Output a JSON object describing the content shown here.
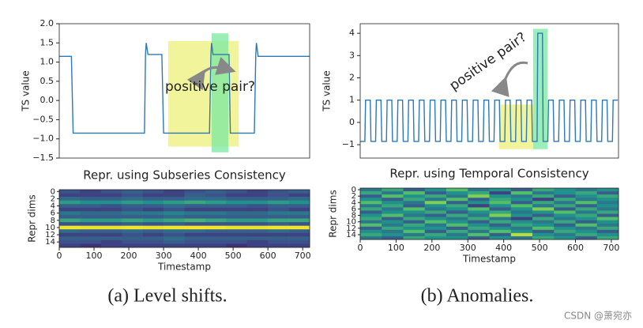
{
  "chart_data": [
    {
      "type": "line",
      "ylabel": "TS value",
      "color": "#2e78b3",
      "xlim": [
        0,
        720
      ],
      "ylim": [
        -1.5,
        2.0
      ],
      "yticks": [
        {
          "value": -1.5,
          "label": "−1.5"
        },
        {
          "value": -1.0,
          "label": "−1.0"
        },
        {
          "value": -0.5,
          "label": "−0.5"
        },
        {
          "value": 0,
          "label": "0.0"
        },
        {
          "value": 0.5,
          "label": "0.5"
        },
        {
          "value": 1.0,
          "label": "1.0"
        },
        {
          "value": 1.5,
          "label": "1.5"
        },
        {
          "value": 2.0,
          "label": "2.0"
        }
      ],
      "x": [
        0,
        35,
        40,
        245,
        248,
        250,
        255,
        295,
        300,
        432,
        436,
        438,
        442,
        488,
        492,
        561,
        565,
        567,
        572,
        720
      ],
      "values": [
        1.15,
        1.15,
        -0.85,
        -0.85,
        1.2,
        1.5,
        1.2,
        1.2,
        -0.85,
        -0.85,
        1.2,
        1.5,
        1.2,
        1.2,
        -0.85,
        -0.85,
        1.2,
        1.5,
        1.15,
        1.15
      ],
      "highlights": [
        {
          "x": [
            313,
            516
          ],
          "y": [
            -1.2,
            1.55
          ],
          "color": "#eef07a"
        },
        {
          "x": [
            438,
            486
          ],
          "y": [
            -1.35,
            1.75
          ],
          "color": "#7ae8a0"
        }
      ],
      "annotation": "positive pair?"
    },
    {
      "type": "heatmap",
      "title": "Repr. using Subseries Consistency",
      "xlabel": "Timestamp",
      "ylabel": "Repr dims",
      "colormap": "viridis",
      "xlim": [
        0,
        720
      ],
      "ylim": [
        15.5,
        -0.5
      ],
      "xticks": [
        0,
        100,
        200,
        300,
        400,
        500,
        600,
        700
      ],
      "yticks": [
        0,
        2,
        4,
        6,
        8,
        10,
        12,
        14
      ],
      "z": [
        [
          0.25,
          0.2,
          0.25,
          0.3,
          0.25,
          0.2,
          0.25,
          0.3,
          0.25,
          0.2,
          0.25,
          0.3
        ],
        [
          0.2,
          0.2,
          0.2,
          0.25,
          0.2,
          0.2,
          0.3,
          0.25,
          0.2,
          0.2,
          0.25,
          0.2
        ],
        [
          0.35,
          0.3,
          0.3,
          0.35,
          0.3,
          0.3,
          0.35,
          0.35,
          0.3,
          0.3,
          0.3,
          0.35
        ],
        [
          0.55,
          0.5,
          0.5,
          0.55,
          0.5,
          0.55,
          0.6,
          0.55,
          0.5,
          0.5,
          0.55,
          0.5
        ],
        [
          0.3,
          0.3,
          0.25,
          0.3,
          0.3,
          0.35,
          0.3,
          0.3,
          0.3,
          0.25,
          0.3,
          0.3
        ],
        [
          0.2,
          0.2,
          0.2,
          0.25,
          0.2,
          0.25,
          0.2,
          0.2,
          0.2,
          0.2,
          0.25,
          0.2
        ],
        [
          0.4,
          0.35,
          0.35,
          0.4,
          0.4,
          0.45,
          0.4,
          0.4,
          0.35,
          0.35,
          0.4,
          0.4
        ],
        [
          0.3,
          0.3,
          0.3,
          0.3,
          0.3,
          0.35,
          0.3,
          0.3,
          0.3,
          0.3,
          0.3,
          0.3
        ],
        [
          0.6,
          0.55,
          0.55,
          0.6,
          0.55,
          0.6,
          0.65,
          0.6,
          0.55,
          0.55,
          0.6,
          0.6
        ],
        [
          0.25,
          0.25,
          0.25,
          0.3,
          0.25,
          0.3,
          0.25,
          0.25,
          0.25,
          0.25,
          0.3,
          0.25
        ],
        [
          0.98,
          0.97,
          0.97,
          0.98,
          0.97,
          0.98,
          0.99,
          0.98,
          0.97,
          0.97,
          0.98,
          0.98
        ],
        [
          0.35,
          0.3,
          0.3,
          0.35,
          0.3,
          0.35,
          0.35,
          0.3,
          0.3,
          0.3,
          0.35,
          0.3
        ],
        [
          0.2,
          0.2,
          0.2,
          0.25,
          0.2,
          0.25,
          0.2,
          0.2,
          0.2,
          0.2,
          0.2,
          0.2
        ],
        [
          0.3,
          0.3,
          0.3,
          0.3,
          0.3,
          0.35,
          0.3,
          0.3,
          0.3,
          0.3,
          0.3,
          0.3
        ],
        [
          0.25,
          0.25,
          0.2,
          0.25,
          0.25,
          0.3,
          0.25,
          0.25,
          0.25,
          0.2,
          0.25,
          0.25
        ],
        [
          0.2,
          0.15,
          0.2,
          0.2,
          0.2,
          0.2,
          0.2,
          0.2,
          0.15,
          0.2,
          0.2,
          0.2
        ]
      ]
    },
    {
      "type": "line",
      "ylabel": "TS value",
      "color": "#2e78b3",
      "xlim": [
        0,
        720
      ],
      "ylim": [
        -1.6,
        4.43
      ],
      "yticks": [
        {
          "value": -1,
          "label": "−1"
        },
        0,
        1,
        2,
        3,
        4
      ],
      "x": [
        0,
        13,
        15,
        28,
        30,
        43,
        45,
        58,
        60,
        73,
        75,
        88,
        90,
        103,
        105,
        118,
        120,
        133,
        135,
        148,
        150,
        163,
        165,
        178,
        180,
        193,
        195,
        208,
        210,
        223,
        225,
        238,
        240,
        253,
        255,
        268,
        270,
        283,
        285,
        298,
        300,
        313,
        315,
        328,
        330,
        343,
        345,
        358,
        360,
        373,
        375,
        388,
        390,
        403,
        405,
        418,
        420,
        433,
        435,
        448,
        450,
        463,
        465,
        478,
        480,
        493,
        495,
        508,
        510,
        523,
        525,
        538,
        540,
        553,
        555,
        568,
        570,
        583,
        585,
        598,
        600,
        613,
        615,
        628,
        630,
        643,
        645,
        658,
        660,
        673,
        675,
        688,
        690,
        703,
        705,
        718
      ],
      "values": [
        -0.85,
        -0.85,
        1.0,
        1.0,
        -0.85,
        -0.85,
        1.0,
        1.0,
        -0.85,
        -0.85,
        1.0,
        1.0,
        -0.85,
        -0.85,
        1.0,
        1.0,
        -0.85,
        -0.85,
        1.0,
        1.0,
        -0.85,
        -0.85,
        1.0,
        1.0,
        -0.85,
        -0.85,
        1.0,
        1.0,
        -0.85,
        -0.85,
        1.0,
        1.0,
        -0.85,
        -0.85,
        1.0,
        1.0,
        -0.85,
        -0.85,
        1.0,
        1.0,
        -0.85,
        -0.85,
        1.0,
        1.0,
        -0.85,
        -0.85,
        1.0,
        1.0,
        -0.85,
        -0.85,
        1.0,
        1.0,
        -0.85,
        -0.85,
        1.0,
        1.0,
        -0.85,
        -0.85,
        1.0,
        1.0,
        -0.85,
        -0.85,
        1.0,
        1.0,
        -0.85,
        -0.85,
        4.0,
        4.0,
        -0.85,
        -0.85,
        1.0,
        1.0,
        -0.85,
        -0.85,
        1.0,
        1.0,
        -0.85,
        -0.85,
        1.0,
        1.0,
        -0.85,
        -0.85,
        1.0,
        1.0,
        -0.85,
        -0.85,
        1.0,
        1.0,
        -0.85,
        -0.85,
        1.0,
        1.0,
        -0.85,
        -0.85,
        1.0,
        1.0
      ],
      "highlights": [
        {
          "x": [
            387,
            482
          ],
          "y": [
            -1.2,
            0.8
          ],
          "color": "#eef07a"
        },
        {
          "x": [
            482,
            522
          ],
          "y": [
            -1.2,
            4.2
          ],
          "color": "#7ae8a0"
        }
      ],
      "annotation": "positive pair?"
    },
    {
      "type": "heatmap",
      "title": "Repr. using Temporal Consistency",
      "xlabel": "Timestamp",
      "ylabel": "Repr dims",
      "colormap": "viridis",
      "xlim": [
        0,
        720
      ],
      "ylim": [
        15.5,
        -0.5
      ],
      "xticks": [
        0,
        100,
        200,
        300,
        400,
        500,
        600,
        700
      ],
      "yticks": [
        0,
        2,
        4,
        6,
        8,
        10,
        12,
        14
      ],
      "z": [
        [
          0.4,
          0.6,
          0.3,
          0.5,
          0.7,
          0.4,
          0.5,
          0.3,
          0.6,
          0.5,
          0.4,
          0.5
        ],
        [
          0.6,
          0.4,
          0.7,
          0.3,
          0.5,
          0.6,
          0.2,
          0.7,
          0.4,
          0.5,
          0.6,
          0.3
        ],
        [
          0.3,
          0.7,
          0.5,
          0.6,
          0.4,
          0.8,
          0.5,
          0.4,
          0.6,
          0.3,
          0.5,
          0.6
        ],
        [
          0.5,
          0.3,
          0.6,
          0.4,
          0.7,
          0.3,
          0.6,
          0.5,
          0.2,
          0.6,
          0.4,
          0.5
        ],
        [
          0.7,
          0.5,
          0.4,
          0.8,
          0.3,
          0.5,
          0.7,
          0.3,
          0.6,
          0.4,
          0.7,
          0.4
        ],
        [
          0.4,
          0.6,
          0.3,
          0.5,
          0.6,
          0.2,
          0.5,
          0.7,
          0.4,
          0.6,
          0.3,
          0.5
        ],
        [
          0.6,
          0.4,
          0.7,
          0.4,
          0.5,
          0.7,
          0.3,
          0.5,
          0.8,
          0.3,
          0.6,
          0.4
        ],
        [
          0.3,
          0.5,
          0.5,
          0.6,
          0.3,
          0.5,
          0.6,
          0.4,
          0.5,
          0.7,
          0.4,
          0.6
        ],
        [
          0.5,
          0.7,
          0.4,
          0.3,
          0.6,
          0.4,
          0.8,
          0.5,
          0.3,
          0.5,
          0.6,
          0.3
        ],
        [
          0.6,
          0.3,
          0.6,
          0.5,
          0.4,
          0.6,
          0.4,
          0.2,
          0.6,
          0.4,
          0.5,
          0.7
        ],
        [
          0.4,
          0.5,
          0.3,
          0.7,
          0.5,
          0.3,
          0.6,
          0.5,
          0.4,
          0.6,
          0.3,
          0.5
        ],
        [
          0.7,
          0.4,
          0.6,
          0.4,
          0.7,
          0.5,
          0.3,
          0.6,
          0.5,
          0.3,
          0.7,
          0.4
        ],
        [
          0.3,
          0.6,
          0.5,
          0.5,
          0.3,
          0.6,
          0.5,
          0.4,
          0.7,
          0.5,
          0.4,
          0.6
        ],
        [
          0.5,
          0.4,
          0.7,
          0.3,
          0.6,
          0.4,
          0.7,
          0.5,
          0.3,
          0.6,
          0.5,
          0.3
        ],
        [
          0.6,
          0.5,
          0.4,
          0.6,
          0.4,
          0.7,
          0.3,
          0.9,
          0.5,
          0.4,
          0.6,
          0.5
        ],
        [
          0.4,
          0.3,
          0.6,
          0.5,
          0.5,
          0.3,
          0.5,
          0.4,
          0.6,
          0.5,
          0.3,
          0.6
        ]
      ]
    }
  ],
  "captions": [
    "(a) Level shifts.",
    "(b) Anomalies."
  ],
  "watermark": "CSDN @萧宛亦"
}
